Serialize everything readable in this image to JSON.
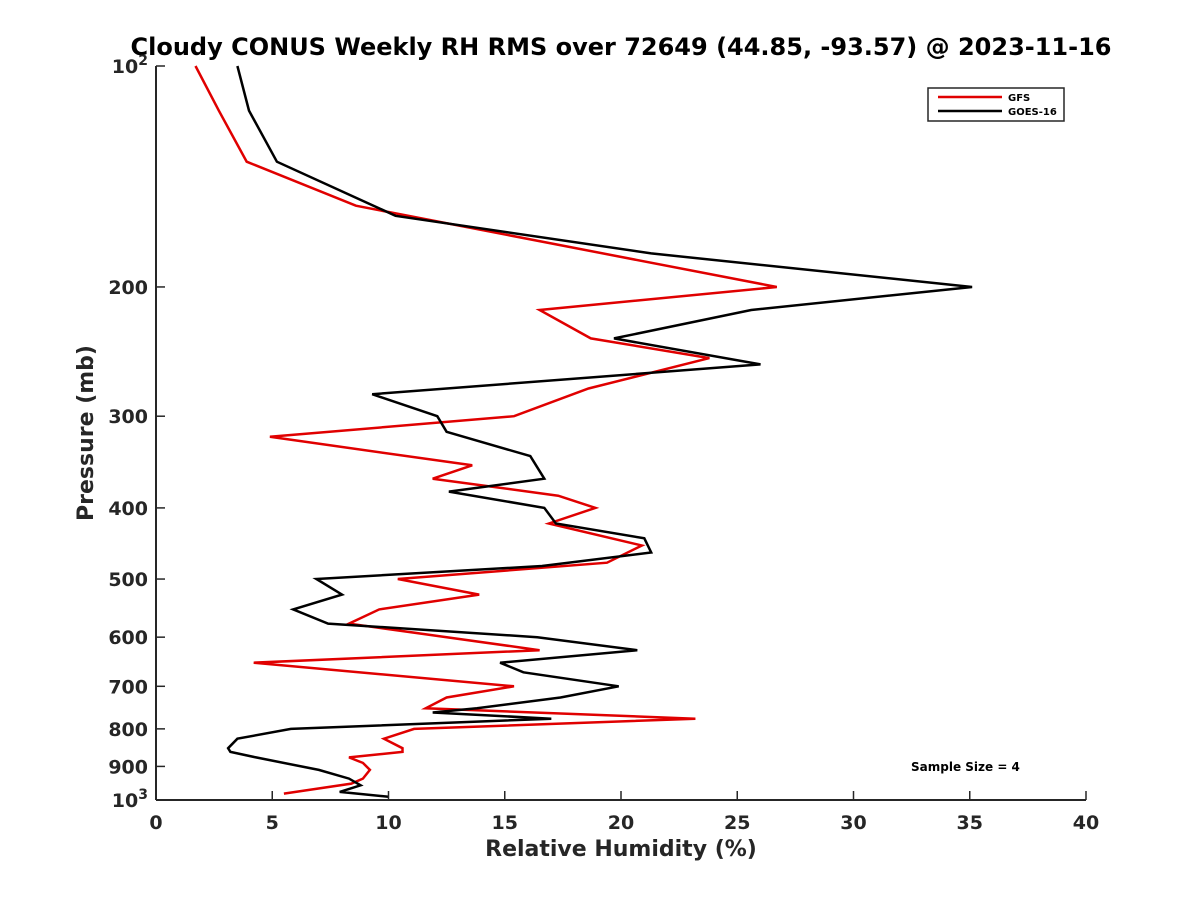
{
  "chart_data": {
    "type": "line",
    "title": "Cloudy CONUS Weekly RH RMS over 72649 (44.85, -93.57) @ 2023-11-16",
    "xlabel": "Relative Humidity (%)",
    "ylabel": "Pressure (mb)",
    "xlim": [
      0,
      40
    ],
    "ylim": [
      100,
      1000
    ],
    "y_scale": "log",
    "y_reversed": true,
    "grid": false,
    "legend_position": "top-right",
    "x_ticks": [
      "0",
      "5",
      "10",
      "15",
      "20",
      "25",
      "30",
      "35",
      "40"
    ],
    "y_ticks": [
      {
        "value": 100,
        "base": "10",
        "exp": "2"
      },
      {
        "value": 200,
        "label": "200"
      },
      {
        "value": 300,
        "label": "300"
      },
      {
        "value": 400,
        "label": "400"
      },
      {
        "value": 500,
        "label": "500"
      },
      {
        "value": 600,
        "label": "600"
      },
      {
        "value": 700,
        "label": "700"
      },
      {
        "value": 800,
        "label": "800"
      },
      {
        "value": 900,
        "label": "900"
      },
      {
        "value": 1000,
        "base": "10",
        "exp": "3"
      }
    ],
    "annotation": "Sample Size = 4",
    "series": [
      {
        "name": "GFS",
        "color": "#e00000",
        "points": [
          [
            1.7,
            100
          ],
          [
            2.7,
            115
          ],
          [
            3.9,
            135
          ],
          [
            8.6,
            155
          ],
          [
            26.7,
            200
          ],
          [
            16.5,
            215
          ],
          [
            18.7,
            235
          ],
          [
            23.8,
            250
          ],
          [
            18.6,
            275
          ],
          [
            15.4,
            300
          ],
          [
            4.9,
            320
          ],
          [
            13.6,
            350
          ],
          [
            11.9,
            365
          ],
          [
            17.3,
            385
          ],
          [
            18.9,
            400
          ],
          [
            16.9,
            420
          ],
          [
            20.9,
            450
          ],
          [
            19.4,
            475
          ],
          [
            10.4,
            500
          ],
          [
            13.9,
            525
          ],
          [
            9.6,
            550
          ],
          [
            8.3,
            575
          ],
          [
            16.5,
            625
          ],
          [
            4.2,
            650
          ],
          [
            15.4,
            700
          ],
          [
            12.5,
            725
          ],
          [
            11.6,
            750
          ],
          [
            23.2,
            775
          ],
          [
            11.1,
            800
          ],
          [
            9.8,
            825
          ],
          [
            10.6,
            850
          ],
          [
            10.6,
            860
          ],
          [
            8.3,
            875
          ],
          [
            8.9,
            890
          ],
          [
            9.2,
            910
          ],
          [
            8.9,
            935
          ],
          [
            8.4,
            950
          ],
          [
            5.5,
            980
          ]
        ]
      },
      {
        "name": "GOES-16",
        "color": "#000000",
        "points": [
          [
            3.5,
            100
          ],
          [
            4.0,
            115
          ],
          [
            5.2,
            135
          ],
          [
            10.3,
            160
          ],
          [
            21.3,
            180
          ],
          [
            35.1,
            200
          ],
          [
            25.6,
            215
          ],
          [
            19.7,
            235
          ],
          [
            26.0,
            255
          ],
          [
            9.3,
            280
          ],
          [
            12.1,
            300
          ],
          [
            12.5,
            315
          ],
          [
            16.1,
            340
          ],
          [
            16.7,
            365
          ],
          [
            12.6,
            380
          ],
          [
            16.7,
            400
          ],
          [
            17.2,
            420
          ],
          [
            21.0,
            440
          ],
          [
            21.3,
            460
          ],
          [
            16.6,
            480
          ],
          [
            6.9,
            500
          ],
          [
            8.0,
            525
          ],
          [
            5.9,
            550
          ],
          [
            7.4,
            575
          ],
          [
            16.4,
            600
          ],
          [
            20.7,
            625
          ],
          [
            14.8,
            650
          ],
          [
            15.8,
            670
          ],
          [
            19.9,
            700
          ],
          [
            17.4,
            725
          ],
          [
            13.8,
            750
          ],
          [
            11.9,
            760
          ],
          [
            17.0,
            775
          ],
          [
            5.8,
            800
          ],
          [
            3.5,
            825
          ],
          [
            3.1,
            850
          ],
          [
            3.2,
            860
          ],
          [
            4.3,
            875
          ],
          [
            7.0,
            910
          ],
          [
            8.3,
            935
          ],
          [
            8.8,
            955
          ],
          [
            7.9,
            975
          ],
          [
            10.0,
            990
          ]
        ]
      }
    ]
  }
}
